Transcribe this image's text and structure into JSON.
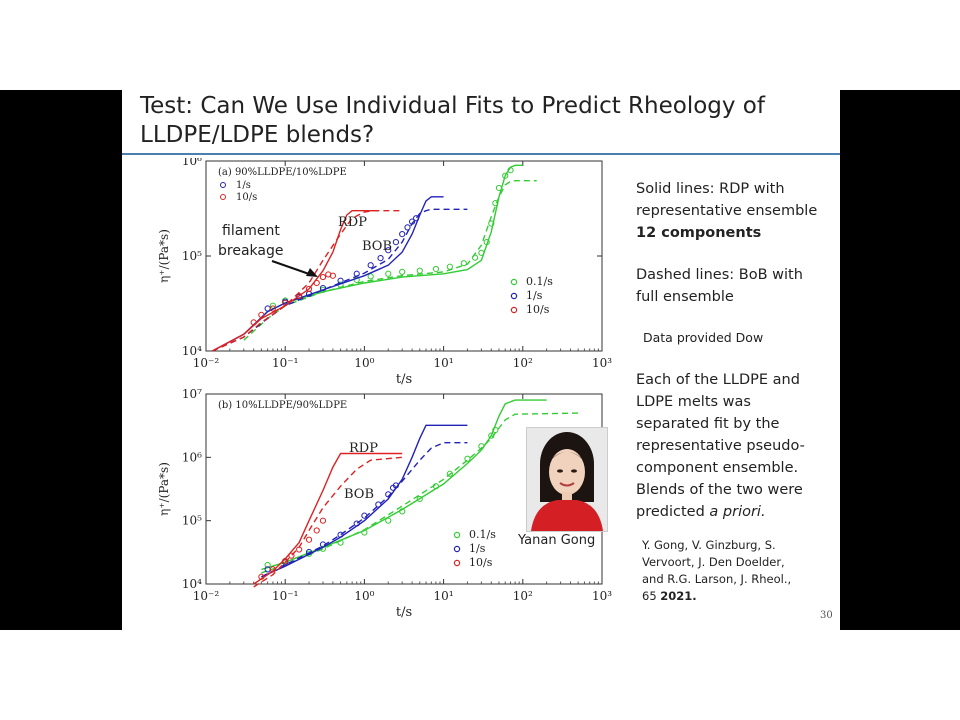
{
  "slide": {
    "title": "Test: Can We Use Individual Fits to Predict Rheology of LLDPE/LDPE blends?",
    "side_text": {
      "solid_line_1": "Solid lines: RDP with",
      "solid_line_2": "representative ensemble",
      "solid_bold": "12 components",
      "dashed_line_1": "Dashed lines: BoB with",
      "dashed_line_2": "full ensemble",
      "data_note": "Data provided Dow",
      "desc_1": "Each of the LLDPE and",
      "desc_2": "LDPE melts was",
      "desc_3": "separated fit by the",
      "desc_4": "representative pseudo-",
      "desc_5": "component ensemble.",
      "desc_6": "Blends of the two were",
      "desc_7a": "predicted ",
      "desc_7b": "a priori."
    },
    "citation": {
      "line1": "Y. Gong, V. Ginzburg, S.",
      "line2": "Vervoort, J. Den Doelder,",
      "line3": "and R.G. Larson, J. Rheol.,",
      "line4a": "65 ",
      "line4b": "2021."
    },
    "page_number": "30",
    "photo_caption": "Yanan Gong"
  },
  "chart_data": [
    {
      "type": "scatter",
      "title": "(a) 90%LLDPE/10%LDPE",
      "xlabel": "t/s",
      "ylabel": "η⁺/(Pa*s)",
      "xscale": "log",
      "yscale": "log",
      "xlim": [
        0.01,
        1000
      ],
      "ylim": [
        10000,
        1000000
      ],
      "x_ticks": [
        "10⁻²",
        "10⁻¹",
        "10⁰",
        "10¹",
        "10²",
        "10³"
      ],
      "y_ticks": [
        "10⁴",
        "10⁵",
        "10⁶"
      ],
      "legend_top": [
        "1/s",
        "10/s"
      ],
      "legend_bottom": [
        "0.1/s",
        "1/s",
        "10/s"
      ],
      "annotations": {
        "rdp": "RDP",
        "bob": "BOB",
        "filament_1": "filament",
        "filament_2": "breakage"
      },
      "series": [
        {
          "name": "0.1/s",
          "color": "#33cc33",
          "data_x": [
            0.07,
            0.1,
            0.15,
            0.2,
            0.3,
            0.5,
            0.8,
            1.2,
            2,
            3,
            5,
            8,
            12,
            18,
            25,
            30,
            35,
            40,
            45,
            50,
            60,
            70
          ],
          "data_y": [
            30000,
            34000,
            37000,
            40000,
            44000,
            50000,
            56000,
            61000,
            65000,
            68000,
            70000,
            73000,
            77000,
            84000,
            96000,
            108000,
            140000,
            220000,
            360000,
            520000,
            700000,
            800000
          ],
          "rdp_x": [
            0.03,
            0.06,
            0.1,
            0.3,
            1,
            3,
            10,
            20,
            30,
            40,
            50,
            60,
            70,
            80,
            100
          ],
          "rdp_y": [
            15000,
            26000,
            32000,
            42000,
            52000,
            60000,
            65000,
            72000,
            90000,
            180000,
            420000,
            700000,
            860000,
            900000,
            900000
          ],
          "bob_x": [
            0.03,
            0.06,
            0.1,
            0.3,
            1,
            3,
            10,
            20,
            30,
            40,
            50,
            60,
            70,
            80,
            150
          ],
          "bob_y": [
            13000,
            22000,
            30000,
            42000,
            54000,
            62000,
            68000,
            82000,
            130000,
            260000,
            420000,
            560000,
            610000,
            620000,
            620000
          ]
        },
        {
          "name": "1/s",
          "color": "#2222bb",
          "data_x": [
            0.06,
            0.1,
            0.15,
            0.2,
            0.3,
            0.5,
            0.8,
            1.2,
            1.6,
            2,
            2.5,
            3,
            3.5,
            4,
            4.5
          ],
          "data_y": [
            28000,
            33000,
            37000,
            40000,
            46000,
            55000,
            65000,
            80000,
            95000,
            115000,
            140000,
            170000,
            200000,
            230000,
            250000
          ],
          "rdp_x": [
            0.012,
            0.03,
            0.06,
            0.1,
            0.3,
            1,
            2,
            3,
            4,
            5,
            6,
            7,
            8,
            10
          ],
          "rdp_y": [
            10000,
            15000,
            26000,
            32000,
            44000,
            62000,
            80000,
            110000,
            170000,
            270000,
            380000,
            420000,
            420000,
            420000
          ],
          "bob_x": [
            0.012,
            0.03,
            0.06,
            0.1,
            0.3,
            1,
            2,
            3,
            4,
            5,
            6,
            7,
            10,
            20
          ],
          "bob_y": [
            10000,
            14000,
            22000,
            30000,
            44000,
            66000,
            92000,
            140000,
            220000,
            280000,
            300000,
            310000,
            310000,
            310000
          ]
        },
        {
          "name": "10/s",
          "color": "#dd2222",
          "data_x": [
            0.04,
            0.05,
            0.07,
            0.1,
            0.15,
            0.2,
            0.25,
            0.3,
            0.35,
            0.4
          ],
          "data_y": [
            20000,
            24000,
            28000,
            32000,
            38000,
            45000,
            52000,
            60000,
            64000,
            62000
          ],
          "rdp_x": [
            0.012,
            0.03,
            0.05,
            0.1,
            0.2,
            0.3,
            0.4,
            0.5,
            0.6,
            0.7,
            0.8,
            1,
            1.5
          ],
          "rdp_y": [
            10000,
            15000,
            22000,
            30000,
            45000,
            70000,
            110000,
            190000,
            270000,
            300000,
            300000,
            300000,
            300000
          ],
          "bob_x": [
            0.012,
            0.03,
            0.05,
            0.1,
            0.2,
            0.3,
            0.5,
            0.7,
            1,
            1.3,
            2,
            3
          ],
          "bob_y": [
            10000,
            14000,
            20000,
            30000,
            52000,
            90000,
            170000,
            250000,
            290000,
            300000,
            300000,
            300000
          ]
        }
      ]
    },
    {
      "type": "scatter",
      "title": "(b) 10%LLDPE/90%LDPE",
      "xlabel": "t/s",
      "ylabel": "η⁺/(Pa*s)",
      "xscale": "log",
      "yscale": "log",
      "xlim": [
        0.01,
        1000
      ],
      "ylim": [
        10000,
        10000000
      ],
      "x_ticks": [
        "10⁻²",
        "10⁻¹",
        "10⁰",
        "10¹",
        "10²",
        "10³"
      ],
      "y_ticks": [
        "10⁴",
        "10⁵",
        "10⁶",
        "10⁷"
      ],
      "legend_bottom": [
        "0.1/s",
        "1/s",
        "10/s"
      ],
      "annotations": {
        "rdp": "RDP",
        "bob": "BOB"
      },
      "series": [
        {
          "name": "0.1/s",
          "color": "#33cc33",
          "data_x": [
            0.06,
            0.1,
            0.2,
            0.3,
            0.5,
            1,
            2,
            3,
            5,
            8,
            12,
            20,
            30,
            40,
            45
          ],
          "data_y": [
            20000,
            23000,
            30000,
            36000,
            45000,
            65000,
            100000,
            140000,
            220000,
            350000,
            550000,
            950000,
            1500000,
            2200000,
            2700000
          ],
          "rdp_x": [
            0.05,
            0.1,
            0.3,
            1,
            3,
            10,
            20,
            30,
            40,
            50,
            60,
            80,
            200
          ],
          "rdp_y": [
            17000,
            22000,
            38000,
            70000,
            150000,
            380000,
            800000,
            1300000,
            2200000,
            4500000,
            7000000,
            8000000,
            8000000
          ],
          "bob_x": [
            0.05,
            0.1,
            0.3,
            1,
            3,
            10,
            20,
            30,
            40,
            50,
            60,
            80,
            500
          ],
          "bob_y": [
            15000,
            20000,
            36000,
            72000,
            170000,
            450000,
            900000,
            1400000,
            2000000,
            2900000,
            3900000,
            4800000,
            5000000
          ]
        },
        {
          "name": "1/s",
          "color": "#2222bb",
          "data_x": [
            0.06,
            0.1,
            0.2,
            0.3,
            0.5,
            0.8,
            1,
            1.5,
            2,
            2.3,
            2.5
          ],
          "data_y": [
            17000,
            22000,
            32000,
            42000,
            60000,
            90000,
            120000,
            180000,
            260000,
            330000,
            360000
          ],
          "rdp_x": [
            0.05,
            0.1,
            0.3,
            0.5,
            1,
            2,
            3,
            4,
            5,
            6,
            20
          ],
          "rdp_y": [
            13000,
            19000,
            38000,
            55000,
            100000,
            220000,
            450000,
            1000000,
            2000000,
            3200000,
            3200000
          ],
          "bob_x": [
            0.05,
            0.1,
            0.3,
            0.5,
            1,
            2,
            3,
            5,
            7,
            10,
            20
          ],
          "bob_y": [
            13000,
            20000,
            40000,
            60000,
            110000,
            240000,
            420000,
            900000,
            1400000,
            1700000,
            1700000
          ]
        },
        {
          "name": "10/s",
          "color": "#dd2222",
          "data_x": [
            0.05,
            0.07,
            0.1,
            0.12,
            0.15,
            0.2,
            0.25,
            0.3
          ],
          "data_y": [
            13000,
            17000,
            23000,
            28000,
            35000,
            50000,
            70000,
            100000
          ],
          "rdp_x": [
            0.04,
            0.07,
            0.1,
            0.15,
            0.2,
            0.3,
            0.4,
            0.5,
            3
          ],
          "rdp_y": [
            10000,
            16000,
            25000,
            45000,
            100000,
            300000,
            700000,
            1150000,
            1150000
          ],
          "bob_x": [
            0.04,
            0.07,
            0.1,
            0.15,
            0.2,
            0.3,
            0.5,
            0.8,
            1.2,
            3
          ],
          "bob_y": [
            9000,
            14000,
            22000,
            38000,
            70000,
            160000,
            350000,
            650000,
            900000,
            1000000
          ]
        }
      ]
    }
  ]
}
